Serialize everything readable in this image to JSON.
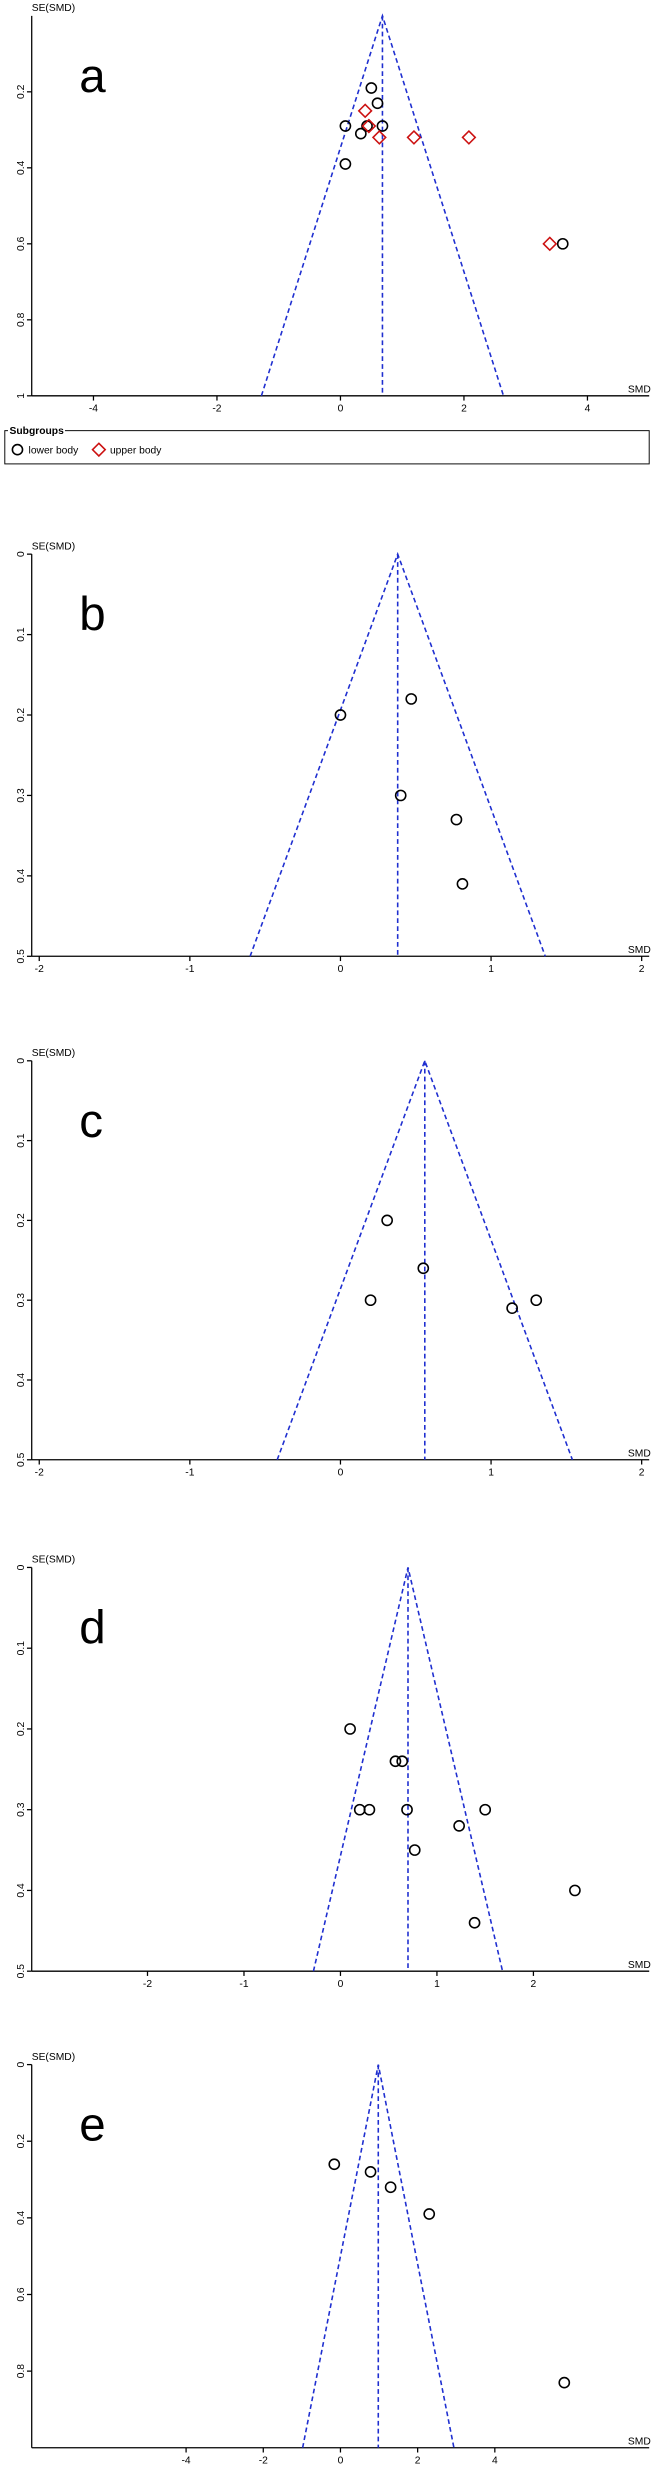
{
  "chart_data": [
    {
      "type": "scatter",
      "label": "a",
      "ylabel": "SE(SMD)",
      "xlabel": "SMD",
      "xlim": [
        -5,
        5
      ],
      "ylim": [
        0,
        1
      ],
      "xticks": [
        -4,
        -2,
        0,
        2,
        4
      ],
      "yticks": [
        0.2,
        0.4,
        0.6,
        0.8,
        1
      ],
      "pooled": 0.68,
      "line_color": "#1f2fd0",
      "legend_title": "Subgroups",
      "series": [
        {
          "name": "lower body",
          "marker": "circle",
          "color": "#000000",
          "x": [
            0.5,
            0.6,
            0.08,
            0.43,
            0.33,
            0.68,
            0.08,
            3.6
          ],
          "y": [
            0.19,
            0.23,
            0.29,
            0.29,
            0.31,
            0.29,
            0.39,
            0.6
          ]
        },
        {
          "name": "upper body",
          "marker": "diamond",
          "color": "#cc1111",
          "x": [
            0.4,
            0.46,
            0.63,
            1.19,
            2.08,
            3.39
          ],
          "y": [
            0.25,
            0.29,
            0.32,
            0.32,
            0.32,
            0.6
          ]
        }
      ]
    },
    {
      "type": "scatter",
      "label": "b",
      "ylabel": "SE(SMD)",
      "xlabel": "SMD",
      "xlim": [
        -2.05,
        2.05
      ],
      "ylim": [
        0,
        0.5
      ],
      "xticks": [
        -2,
        -1,
        0,
        1,
        2
      ],
      "yticks": [
        0,
        0.1,
        0.2,
        0.3,
        0.4,
        0.5
      ],
      "pooled": 0.38,
      "line_color": "#1f2fd0",
      "series": [
        {
          "marker": "circle",
          "color": "#000000",
          "x": [
            0,
            0.47,
            0.4,
            0.77,
            0.81
          ],
          "y": [
            0.2,
            0.18,
            0.3,
            0.33,
            0.41
          ]
        }
      ]
    },
    {
      "type": "scatter",
      "label": "c",
      "ylabel": "SE(SMD)",
      "xlabel": "SMD",
      "xlim": [
        -2.05,
        2.05
      ],
      "ylim": [
        0,
        0.5
      ],
      "xticks": [
        -2,
        -1,
        0,
        1,
        2
      ],
      "yticks": [
        0,
        0.1,
        0.2,
        0.3,
        0.4,
        0.5
      ],
      "pooled": 0.56,
      "line_color": "#1f2fd0",
      "series": [
        {
          "marker": "circle",
          "color": "#000000",
          "x": [
            0.31,
            0.2,
            0.55,
            1.14,
            1.3
          ],
          "y": [
            0.2,
            0.3,
            0.26,
            0.31,
            0.3
          ]
        }
      ]
    },
    {
      "type": "scatter",
      "label": "d",
      "ylabel": "SE(SMD)",
      "xlabel": "SMD",
      "xlim": [
        -3.2,
        3.2
      ],
      "ylim": [
        0,
        0.5
      ],
      "xticks": [
        -2,
        -1,
        0,
        1,
        2
      ],
      "yticks": [
        0,
        0.1,
        0.2,
        0.3,
        0.4,
        0.5
      ],
      "pooled": 0.7,
      "line_color": "#1f2fd0",
      "series": [
        {
          "marker": "circle",
          "color": "#000000",
          "x": [
            0.1,
            0.57,
            0.64,
            0.2,
            0.3,
            0.69,
            1.5,
            1.23,
            0.77,
            2.43,
            1.39
          ],
          "y": [
            0.2,
            0.24,
            0.24,
            0.3,
            0.3,
            0.3,
            0.3,
            0.32,
            0.35,
            0.4,
            0.44
          ]
        }
      ]
    },
    {
      "type": "scatter",
      "label": "e",
      "ylabel": "SE(SMD)",
      "xlabel": "SMD",
      "xlim": [
        -8,
        8
      ],
      "ylim": [
        0,
        1
      ],
      "xticks": [
        -4,
        -2,
        0,
        2,
        4
      ],
      "yticks": [
        0,
        0.2,
        0.4,
        0.6,
        0.8
      ],
      "pooled": 0.98,
      "line_color": "#1f2fd0",
      "series": [
        {
          "marker": "circle",
          "color": "#000000",
          "x": [
            -0.16,
            0.78,
            1.3,
            2.3,
            5.8
          ],
          "y": [
            0.26,
            0.28,
            0.32,
            0.39,
            0.83
          ]
        }
      ]
    }
  ]
}
